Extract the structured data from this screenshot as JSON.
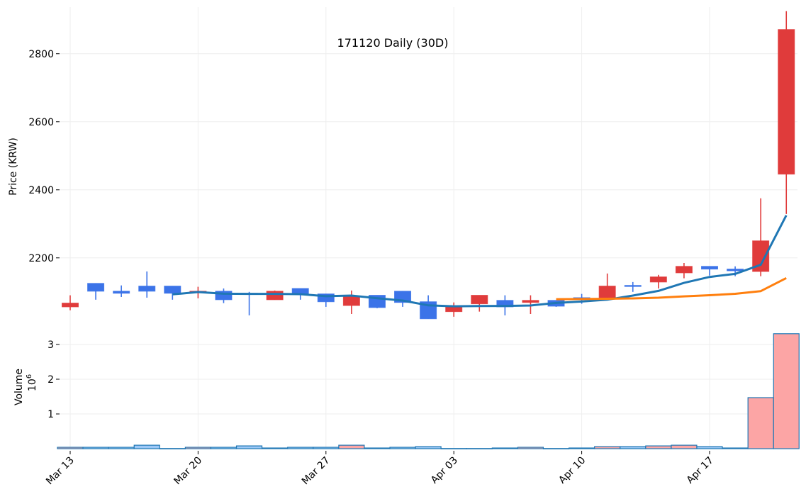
{
  "chart_data": {
    "type": "candlestick",
    "title": "171120 Daily (30D)",
    "ylabel": "Price (KRW)",
    "volume_label": "Volume",
    "volume_scale_label": "10^6",
    "ylim": [
      2010,
      2937
    ],
    "yticks": [
      2200,
      2400,
      2600,
      2800
    ],
    "volume_ylim": [
      0,
      3.3
    ],
    "volume_yticks": [
      1,
      2,
      3
    ],
    "grid": true,
    "dates": [
      "Mar 13",
      "Mar 14",
      "Mar 15",
      "Mar 16",
      "Mar 17",
      "Mar 20",
      "Mar 21",
      "Mar 22",
      "Mar 23",
      "Mar 24",
      "Mar 27",
      "Mar 28",
      "Mar 29",
      "Mar 30",
      "Mar 31",
      "Apr 03",
      "Apr 04",
      "Apr 05",
      "Apr 06",
      "Apr 07",
      "Apr 10",
      "Apr 11",
      "Apr 12",
      "Apr 13",
      "Apr 14",
      "Apr 17",
      "Apr 18",
      "Apr 19",
      "Apr 20"
    ],
    "xtick_labels": [
      "Mar 13",
      "Mar 20",
      "Mar 27",
      "Apr 03",
      "Apr 10",
      "Apr 17"
    ],
    "open": [
      2056,
      2125,
      2102,
      2117,
      2117,
      2098,
      2102,
      2096,
      2077,
      2110,
      2094,
      2060,
      2090,
      2102,
      2071,
      2042,
      2065,
      2075,
      2069,
      2075,
      2083,
      2083,
      2119,
      2129,
      2156,
      2175,
      2167,
      2160,
      2446
    ],
    "high": [
      2090,
      2125,
      2119,
      2160,
      2117,
      2115,
      2110,
      2100,
      2104,
      2110,
      2094,
      2104,
      2090,
      2102,
      2090,
      2069,
      2090,
      2090,
      2090,
      2075,
      2094,
      2154,
      2129,
      2150,
      2185,
      2175,
      2175,
      2375,
      2925
    ],
    "low": [
      2046,
      2077,
      2085,
      2083,
      2077,
      2081,
      2067,
      2031,
      2077,
      2077,
      2056,
      2035,
      2052,
      2056,
      2021,
      2027,
      2042,
      2031,
      2035,
      2056,
      2065,
      2083,
      2100,
      2110,
      2140,
      2148,
      2146,
      2146,
      2329
    ],
    "close": [
      2067,
      2102,
      2096,
      2102,
      2096,
      2102,
      2077,
      2094,
      2102,
      2092,
      2071,
      2087,
      2054,
      2069,
      2021,
      2058,
      2090,
      2056,
      2075,
      2058,
      2079,
      2117,
      2117,
      2144,
      2175,
      2167,
      2162,
      2250,
      2871
    ],
    "volume": [
      40000,
      40000,
      40000,
      100000,
      5000,
      40000,
      40000,
      80000,
      20000,
      40000,
      40000,
      100000,
      20000,
      40000,
      60000,
      5000,
      5000,
      20000,
      40000,
      5000,
      20000,
      60000,
      60000,
      80000,
      100000,
      60000,
      20000,
      1470000,
      3310000
    ],
    "moving_averages": [
      {
        "period": 5,
        "color": "#1f77b4"
      },
      {
        "period": 20,
        "color": "#ff7f0e"
      }
    ],
    "colors": {
      "up": "#e03b3b",
      "down": "#3b73e8",
      "volume_up": "#fca5a5",
      "volume_down": "#9cc8f7",
      "volume_edge": "#1f77b4",
      "grid": "#eeeeee"
    }
  }
}
